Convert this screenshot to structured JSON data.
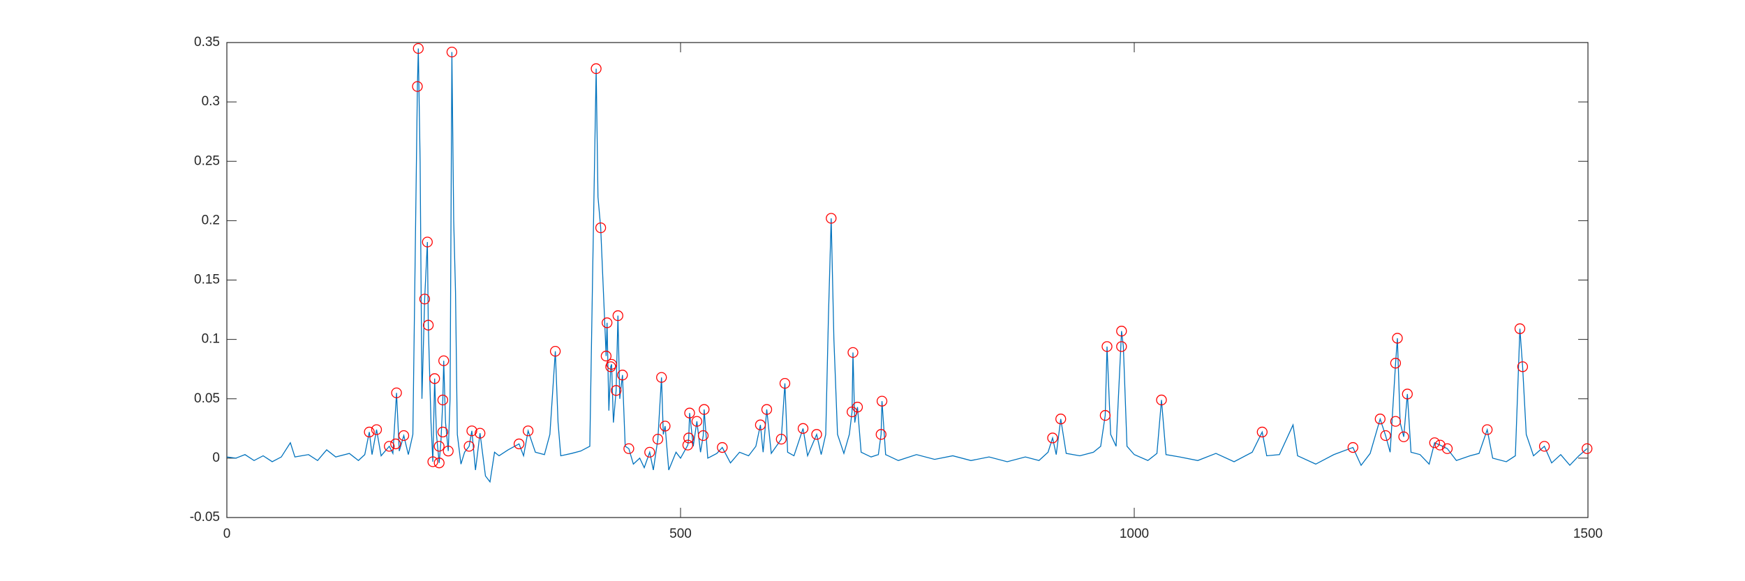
{
  "chart_data": {
    "type": "line",
    "xlim": [
      0,
      1500
    ],
    "xticks": [
      0,
      500,
      1000,
      1500
    ],
    "ylim": [
      -0.05,
      0.35
    ],
    "yticks": [
      -0.05,
      0,
      0.05,
      0.1,
      0.15,
      0.2,
      0.25,
      0.3,
      0.35
    ],
    "grid": false,
    "box": true,
    "series": [
      {
        "color": "#0072bd",
        "linestyle": "-",
        "marker": "none",
        "x": [
          0,
          10,
          20,
          30,
          40,
          50,
          60,
          70,
          75,
          90,
          100,
          110,
          120,
          135,
          145,
          152,
          157,
          160,
          165,
          170,
          179,
          183,
          187,
          190,
          195,
          200,
          205,
          210,
          211,
          213,
          215,
          218,
          221,
          222,
          225,
          227,
          229,
          231,
          234,
          236,
          238,
          239,
          241,
          244,
          246,
          248,
          250,
          252,
          254,
          258,
          262,
          267,
          270,
          274,
          279,
          285,
          290,
          295,
          300,
          310,
          322,
          327,
          332,
          340,
          350,
          356,
          362,
          365,
          368,
          380,
          390,
          400,
          403,
          407,
          409,
          412,
          415,
          418,
          419,
          421,
          423,
          424,
          426,
          429,
          431,
          433,
          436,
          439,
          443,
          448,
          455,
          460,
          466,
          470,
          475,
          479,
          481,
          483,
          487,
          495,
          500,
          508,
          509,
          510,
          514,
          518,
          522,
          525,
          526,
          530,
          540,
          546,
          555,
          565,
          575,
          583,
          588,
          591,
          595,
          600,
          611,
          615,
          618,
          625,
          635,
          640,
          650,
          655,
          660,
          663,
          666,
          669,
          673,
          680,
          686,
          689,
          690,
          692,
          695,
          699,
          710,
          718,
          721,
          722,
          726,
          740,
          760,
          780,
          800,
          820,
          840,
          860,
          880,
          895,
          905,
          910,
          914,
          919,
          925,
          940,
          955,
          963,
          968,
          970,
          974,
          980,
          986,
          988,
          992,
          1000,
          1015,
          1025,
          1030,
          1035,
          1050,
          1070,
          1090,
          1110,
          1130,
          1141,
          1146,
          1160,
          1175,
          1180,
          1200,
          1220,
          1241,
          1250,
          1260,
          1271,
          1277,
          1282,
          1288,
          1290,
          1293,
          1297,
          1301,
          1305,
          1315,
          1325,
          1331,
          1337,
          1345,
          1355,
          1370,
          1380,
          1389,
          1395,
          1410,
          1420,
          1425,
          1428,
          1432,
          1440,
          1452,
          1460,
          1470,
          1480,
          1490,
          1499
        ],
        "values": [
          0.001,
          0,
          0.003,
          -0.002,
          0.002,
          -0.003,
          0.001,
          0.013,
          0.001,
          0.003,
          -0.002,
          0.007,
          0.001,
          0.004,
          -0.002,
          0.003,
          0.022,
          0.003,
          0.024,
          0.002,
          0.01,
          0.004,
          0.055,
          0.006,
          0.019,
          0.003,
          0.02,
          0.313,
          0.345,
          0.25,
          0.05,
          0.134,
          0.182,
          0.112,
          0.03,
          -0.003,
          0.067,
          0.02,
          -0.004,
          0.015,
          0.049,
          0.082,
          0.03,
          0.006,
          0.05,
          0.342,
          0.2,
          0.14,
          0.02,
          -0.005,
          0.005,
          0.01,
          0.023,
          -0.01,
          0.021,
          -0.015,
          -0.02,
          0.005,
          0.002,
          0.007,
          0.012,
          0.002,
          0.023,
          0.005,
          0.003,
          0.02,
          0.09,
          0.03,
          0.002,
          0.004,
          0.006,
          0.01,
          0.15,
          0.328,
          0.22,
          0.194,
          0.14,
          0.086,
          0.114,
          0.04,
          0.077,
          0.079,
          0.03,
          0.057,
          0.12,
          0.05,
          0.07,
          0.01,
          0.008,
          -0.005,
          0,
          -0.008,
          0.005,
          -0.01,
          0.016,
          0.068,
          0.02,
          0.027,
          -0.01,
          0.005,
          0,
          0.011,
          0.017,
          0.038,
          0.01,
          0.031,
          0.005,
          0.019,
          0.041,
          0,
          0.004,
          0.009,
          -0.004,
          0.005,
          0.002,
          0.01,
          0.028,
          0.005,
          0.041,
          0.004,
          0.016,
          0.063,
          0.005,
          0.002,
          0.025,
          0.002,
          0.02,
          0.003,
          0.02,
          0.12,
          0.202,
          0.1,
          0.02,
          0.004,
          0.02,
          0.039,
          0.089,
          0.03,
          0.043,
          0.005,
          0.001,
          0.003,
          0.02,
          0.048,
          0.003,
          -0.002,
          0.003,
          -0.001,
          0.002,
          -0.002,
          0.001,
          -0.003,
          0.001,
          -0.002,
          0.005,
          0.017,
          0.003,
          0.033,
          0.004,
          0.002,
          0.005,
          0.01,
          0.036,
          0.094,
          0.02,
          0.01,
          0.107,
          0.094,
          0.01,
          0.003,
          -0.002,
          0.004,
          0.049,
          0.003,
          0.001,
          -0.002,
          0.004,
          -0.003,
          0.005,
          0.022,
          0.002,
          0.003,
          0.028,
          0.002,
          -0.005,
          0.003,
          0.009,
          -0.006,
          0.004,
          0.033,
          0.019,
          0.005,
          0.08,
          0.101,
          0.03,
          0.018,
          0.054,
          0.005,
          0.003,
          -0.005,
          0.013,
          0.011,
          0.008,
          -0.002,
          0.002,
          0.004,
          0.024,
          0,
          -0.003,
          0.002,
          0.109,
          0.077,
          0.02,
          0.002,
          0.01,
          -0.004,
          0.003,
          -0.006,
          0.002,
          0.008
        ]
      },
      {
        "color": "#ff0000",
        "linestyle": "none",
        "marker": "o",
        "x": [
          157,
          165,
          179,
          186,
          187,
          195,
          210,
          211,
          218,
          221,
          222,
          227,
          229,
          234,
          234,
          238,
          238,
          239,
          244,
          248,
          267,
          270,
          279,
          322,
          332,
          362,
          407,
          412,
          419,
          418,
          423,
          424,
          429,
          431,
          436,
          443,
          466,
          475,
          479,
          483,
          508,
          509,
          510,
          518,
          526,
          525,
          546,
          588,
          595,
          611,
          615,
          635,
          650,
          666,
          689,
          690,
          695,
          721,
          722,
          910,
          919,
          968,
          970,
          986,
          986,
          1030,
          1141,
          1241,
          1271,
          1277,
          1288,
          1288,
          1290,
          1297,
          1301,
          1331,
          1337,
          1345,
          1389,
          1425,
          1428,
          1452,
          1499
        ],
        "values": [
          0.022,
          0.024,
          0.01,
          0.012,
          0.055,
          0.019,
          0.313,
          0.345,
          0.134,
          0.182,
          0.112,
          -0.003,
          0.067,
          -0.004,
          0.01,
          0.022,
          0.049,
          0.082,
          0.006,
          0.342,
          0.01,
          0.023,
          0.021,
          0.012,
          0.023,
          0.09,
          0.328,
          0.194,
          0.114,
          0.086,
          0.077,
          0.079,
          0.057,
          0.12,
          0.07,
          0.008,
          0.005,
          0.016,
          0.068,
          0.027,
          0.011,
          0.017,
          0.038,
          0.031,
          0.041,
          0.019,
          0.009,
          0.028,
          0.041,
          0.016,
          0.063,
          0.025,
          0.02,
          0.202,
          0.039,
          0.089,
          0.043,
          0.02,
          0.048,
          0.017,
          0.033,
          0.036,
          0.094,
          0.094,
          0.107,
          0.049,
          0.022,
          0.009,
          0.033,
          0.019,
          0.031,
          0.08,
          0.101,
          0.018,
          0.054,
          0.013,
          0.011,
          0.008,
          0.024,
          0.109,
          0.077,
          0.01,
          0.008
        ]
      }
    ]
  }
}
